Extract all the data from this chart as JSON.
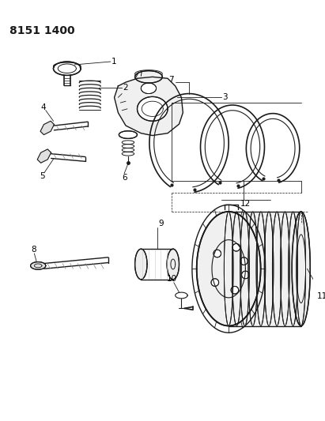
{
  "title": "8151 1400",
  "bg_color": "#ffffff",
  "line_color": "#1a1a1a",
  "title_fontsize": 10,
  "label_fontsize": 7.5,
  "fig_width": 4.11,
  "fig_height": 5.33,
  "dpi": 100
}
